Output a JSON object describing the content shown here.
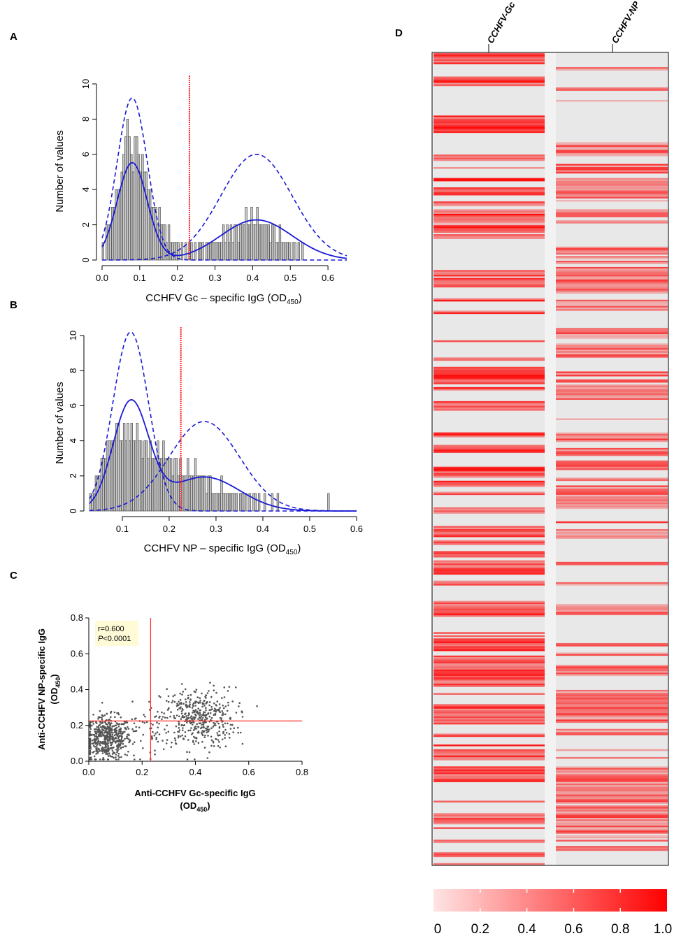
{
  "panels": {
    "a": "A",
    "b": "B",
    "c": "C",
    "d": "D"
  },
  "chart_data": [
    {
      "type": "bar",
      "panel": "A",
      "xlabel": "CCHFV Gc – specific IgG (OD",
      "xlabel_sub": "450",
      "xlabel_close": ")",
      "ylabel": "Number of values",
      "xlim": [
        0.0,
        0.65
      ],
      "ylim": [
        0,
        10
      ],
      "xticks": [
        "0.0",
        "0.1",
        "0.2",
        "0.3",
        "0.4",
        "0.5",
        "0.6"
      ],
      "yticks": [
        "0",
        "2",
        "4",
        "6",
        "8",
        "10"
      ],
      "bin_start": 0.0,
      "bin_width": 0.005,
      "values": [
        1,
        0,
        2,
        2,
        2,
        3,
        3,
        4,
        4,
        4,
        5,
        6,
        7,
        8,
        7,
        6,
        5,
        7,
        7,
        6,
        5,
        6,
        5,
        5,
        4,
        4,
        3,
        3,
        3,
        2,
        3,
        2,
        2,
        2,
        1,
        2,
        1,
        1,
        1,
        1,
        1,
        0,
        1,
        0,
        1,
        0,
        1,
        1,
        0,
        1,
        0,
        1,
        1,
        1,
        0,
        1,
        1,
        1,
        1,
        1,
        1,
        1,
        1,
        1,
        2,
        1,
        2,
        1,
        2,
        1,
        2,
        2,
        1,
        2,
        2,
        2,
        3,
        2,
        2,
        3,
        2,
        2,
        3,
        2,
        2,
        2,
        2,
        2,
        2,
        1,
        2,
        2,
        1,
        1,
        2,
        1,
        1,
        1,
        1,
        1,
        0,
        1,
        1,
        0,
        1,
        0,
        1,
        0,
        0,
        0,
        0,
        0,
        0,
        0,
        0,
        0,
        0,
        0,
        0,
        0,
        0,
        0,
        0,
        0,
        0,
        0
      ],
      "fit_total": {
        "components": [
          {
            "w": 0.55,
            "mu": 0.08,
            "sd": 0.04
          },
          {
            "w": 0.45,
            "mu": 0.41,
            "sd": 0.095
          }
        ],
        "scale": 1.0
      },
      "fit_components": [
        {
          "mu": 0.08,
          "sd": 0.04,
          "peak": 9.2
        },
        {
          "mu": 0.41,
          "sd": 0.095,
          "peak": 6.0
        }
      ],
      "cutoff": 0.232
    },
    {
      "type": "bar",
      "panel": "B",
      "xlabel": "CCHFV NP – specific IgG (OD",
      "xlabel_sub": "450",
      "xlabel_close": ")",
      "ylabel": "Number of values",
      "xlim": [
        0.03,
        0.6
      ],
      "ylim": [
        0,
        10
      ],
      "xticks": [
        "0.1",
        "0.2",
        "0.3",
        "0.4",
        "0.5",
        "0.6"
      ],
      "yticks": [
        "0",
        "2",
        "4",
        "6",
        "8",
        "10"
      ],
      "bin_start": 0.03,
      "bin_width": 0.004,
      "values": [
        1,
        1,
        1,
        2,
        2,
        2,
        3,
        3,
        3,
        4,
        4,
        4,
        4,
        4,
        5,
        5,
        4,
        4,
        5,
        4,
        5,
        4,
        5,
        4,
        4,
        5,
        4,
        4,
        3,
        4,
        4,
        3,
        4,
        3,
        3,
        3,
        4,
        3,
        3,
        4,
        3,
        3,
        3,
        3,
        2,
        3,
        3,
        2,
        3,
        2,
        2,
        2,
        3,
        2,
        2,
        2,
        3,
        2,
        2,
        2,
        2,
        2,
        1,
        2,
        2,
        1,
        1,
        1,
        1,
        1,
        2,
        1,
        1,
        1,
        1,
        1,
        1,
        1,
        1,
        0,
        1,
        1,
        1,
        1,
        0,
        1,
        0,
        1,
        1,
        0,
        1,
        0,
        0,
        1,
        0,
        0,
        0,
        1,
        0,
        0,
        1,
        0,
        0,
        0,
        0,
        0,
        0,
        0,
        0,
        0,
        0,
        0,
        0,
        0,
        0,
        0,
        0,
        0,
        0,
        0,
        0,
        0,
        0,
        0,
        0,
        0,
        0,
        1,
        0,
        0,
        0,
        0,
        0,
        0,
        0,
        0,
        0,
        0,
        0,
        0
      ],
      "fit_total": {
        "components": [
          {
            "w": 0.5,
            "mu": 0.118,
            "sd": 0.038
          },
          {
            "w": 0.5,
            "mu": 0.275,
            "sd": 0.075
          }
        ],
        "scale": 1.0
      },
      "fit_components": [
        {
          "mu": 0.118,
          "sd": 0.038,
          "peak": 10.2
        },
        {
          "mu": 0.275,
          "sd": 0.075,
          "peak": 5.1
        }
      ],
      "cutoff": 0.225
    },
    {
      "type": "scatter",
      "panel": "C",
      "xlabel": "Anti-CCHFV Gc-specific IgG",
      "xlabel2": "(OD",
      "xlabel2_sub": "450",
      "xlabel2_close": ")",
      "ylabel": "Anti-CCHFV NP-specific IgG",
      "ylabel2": "(OD",
      "ylabel2_sub": "450",
      "ylabel2_close": ")",
      "xlim": [
        0.0,
        0.8
      ],
      "ylim": [
        0.0,
        0.8
      ],
      "xticks": [
        "0.0",
        "0.2",
        "0.4",
        "0.6",
        "0.8"
      ],
      "yticks": [
        "0.0",
        "0.2",
        "0.4",
        "0.6",
        "0.8"
      ],
      "stat_r": "r=0.600",
      "stat_p_italic": "P",
      "stat_p_rest": "<0.0001",
      "cutoff_x": 0.232,
      "cutoff_y": 0.225,
      "clusters": [
        {
          "n": 520,
          "mx": 0.07,
          "sx": 0.045,
          "my": 0.13,
          "sy": 0.06
        },
        {
          "n": 420,
          "mx": 0.41,
          "sx": 0.07,
          "my": 0.24,
          "sy": 0.085
        },
        {
          "n": 60,
          "mx": 0.22,
          "sx": 0.08,
          "my": 0.18,
          "sy": 0.07
        }
      ]
    },
    {
      "type": "heatmap",
      "panel": "D",
      "columns": [
        "CCHFV-Gc",
        "CCHFV-NP"
      ],
      "colorbar_ticks": [
        "0",
        "0.2",
        "0.4",
        "0.6",
        "0.8",
        "1.0"
      ],
      "vmin": 0.0,
      "vmax": 1.0,
      "low_color": "#e8e8e8",
      "high_color": "#ff0000",
      "rows": 520,
      "gc_positive_fraction": 0.45,
      "np_positive_fraction": 0.4
    }
  ],
  "colors": {
    "bar_fill": "#c8c8c8",
    "bar_stroke": "#333333",
    "fit_line": "#1a1ad6",
    "cutoff": "#ff2a2a",
    "point": "#555555",
    "stat_box": "#fffbd6"
  }
}
